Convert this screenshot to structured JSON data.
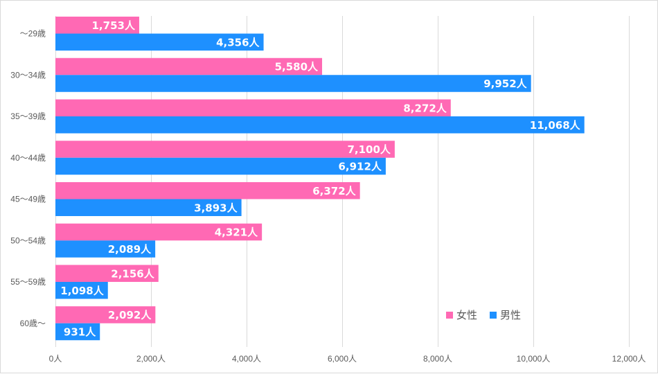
{
  "chart_data": {
    "type": "bar",
    "orientation": "horizontal",
    "categories": [
      "～29歳",
      "30～34歳",
      "35～39歳",
      "40～44歳",
      "45～49歳",
      "50～54歳",
      "55～59歳",
      "60歳～"
    ],
    "series": [
      {
        "name": "女性",
        "color": "#ff69b4",
        "values": [
          1753,
          5580,
          8272,
          7100,
          6372,
          4321,
          2156,
          2092
        ],
        "labels": [
          "1,753人",
          "5,580人",
          "8,272人",
          "7,100人",
          "6,372人",
          "4,321人",
          "2,156人",
          "2,092人"
        ]
      },
      {
        "name": "男性",
        "color": "#1e90ff",
        "values": [
          4356,
          9952,
          11068,
          6912,
          3893,
          2089,
          1098,
          931
        ],
        "labels": [
          "4,356人",
          "9,952人",
          "11,068人",
          "6,912人",
          "3,893人",
          "2,089人",
          "1,098人",
          "931人"
        ]
      }
    ],
    "xlim": [
      0,
      12000
    ],
    "ticks": [
      0,
      2000,
      4000,
      6000,
      8000,
      10000,
      12000
    ],
    "tick_labels": [
      "0人",
      "2,000人",
      "4,000人",
      "6,000人",
      "8,000人",
      "10,000人",
      "12,000人"
    ],
    "grid": "vertical",
    "legend": {
      "placement": "bottom-right",
      "entries": [
        "女性",
        "男性"
      ]
    },
    "title": "",
    "xlabel": "",
    "ylabel": ""
  }
}
